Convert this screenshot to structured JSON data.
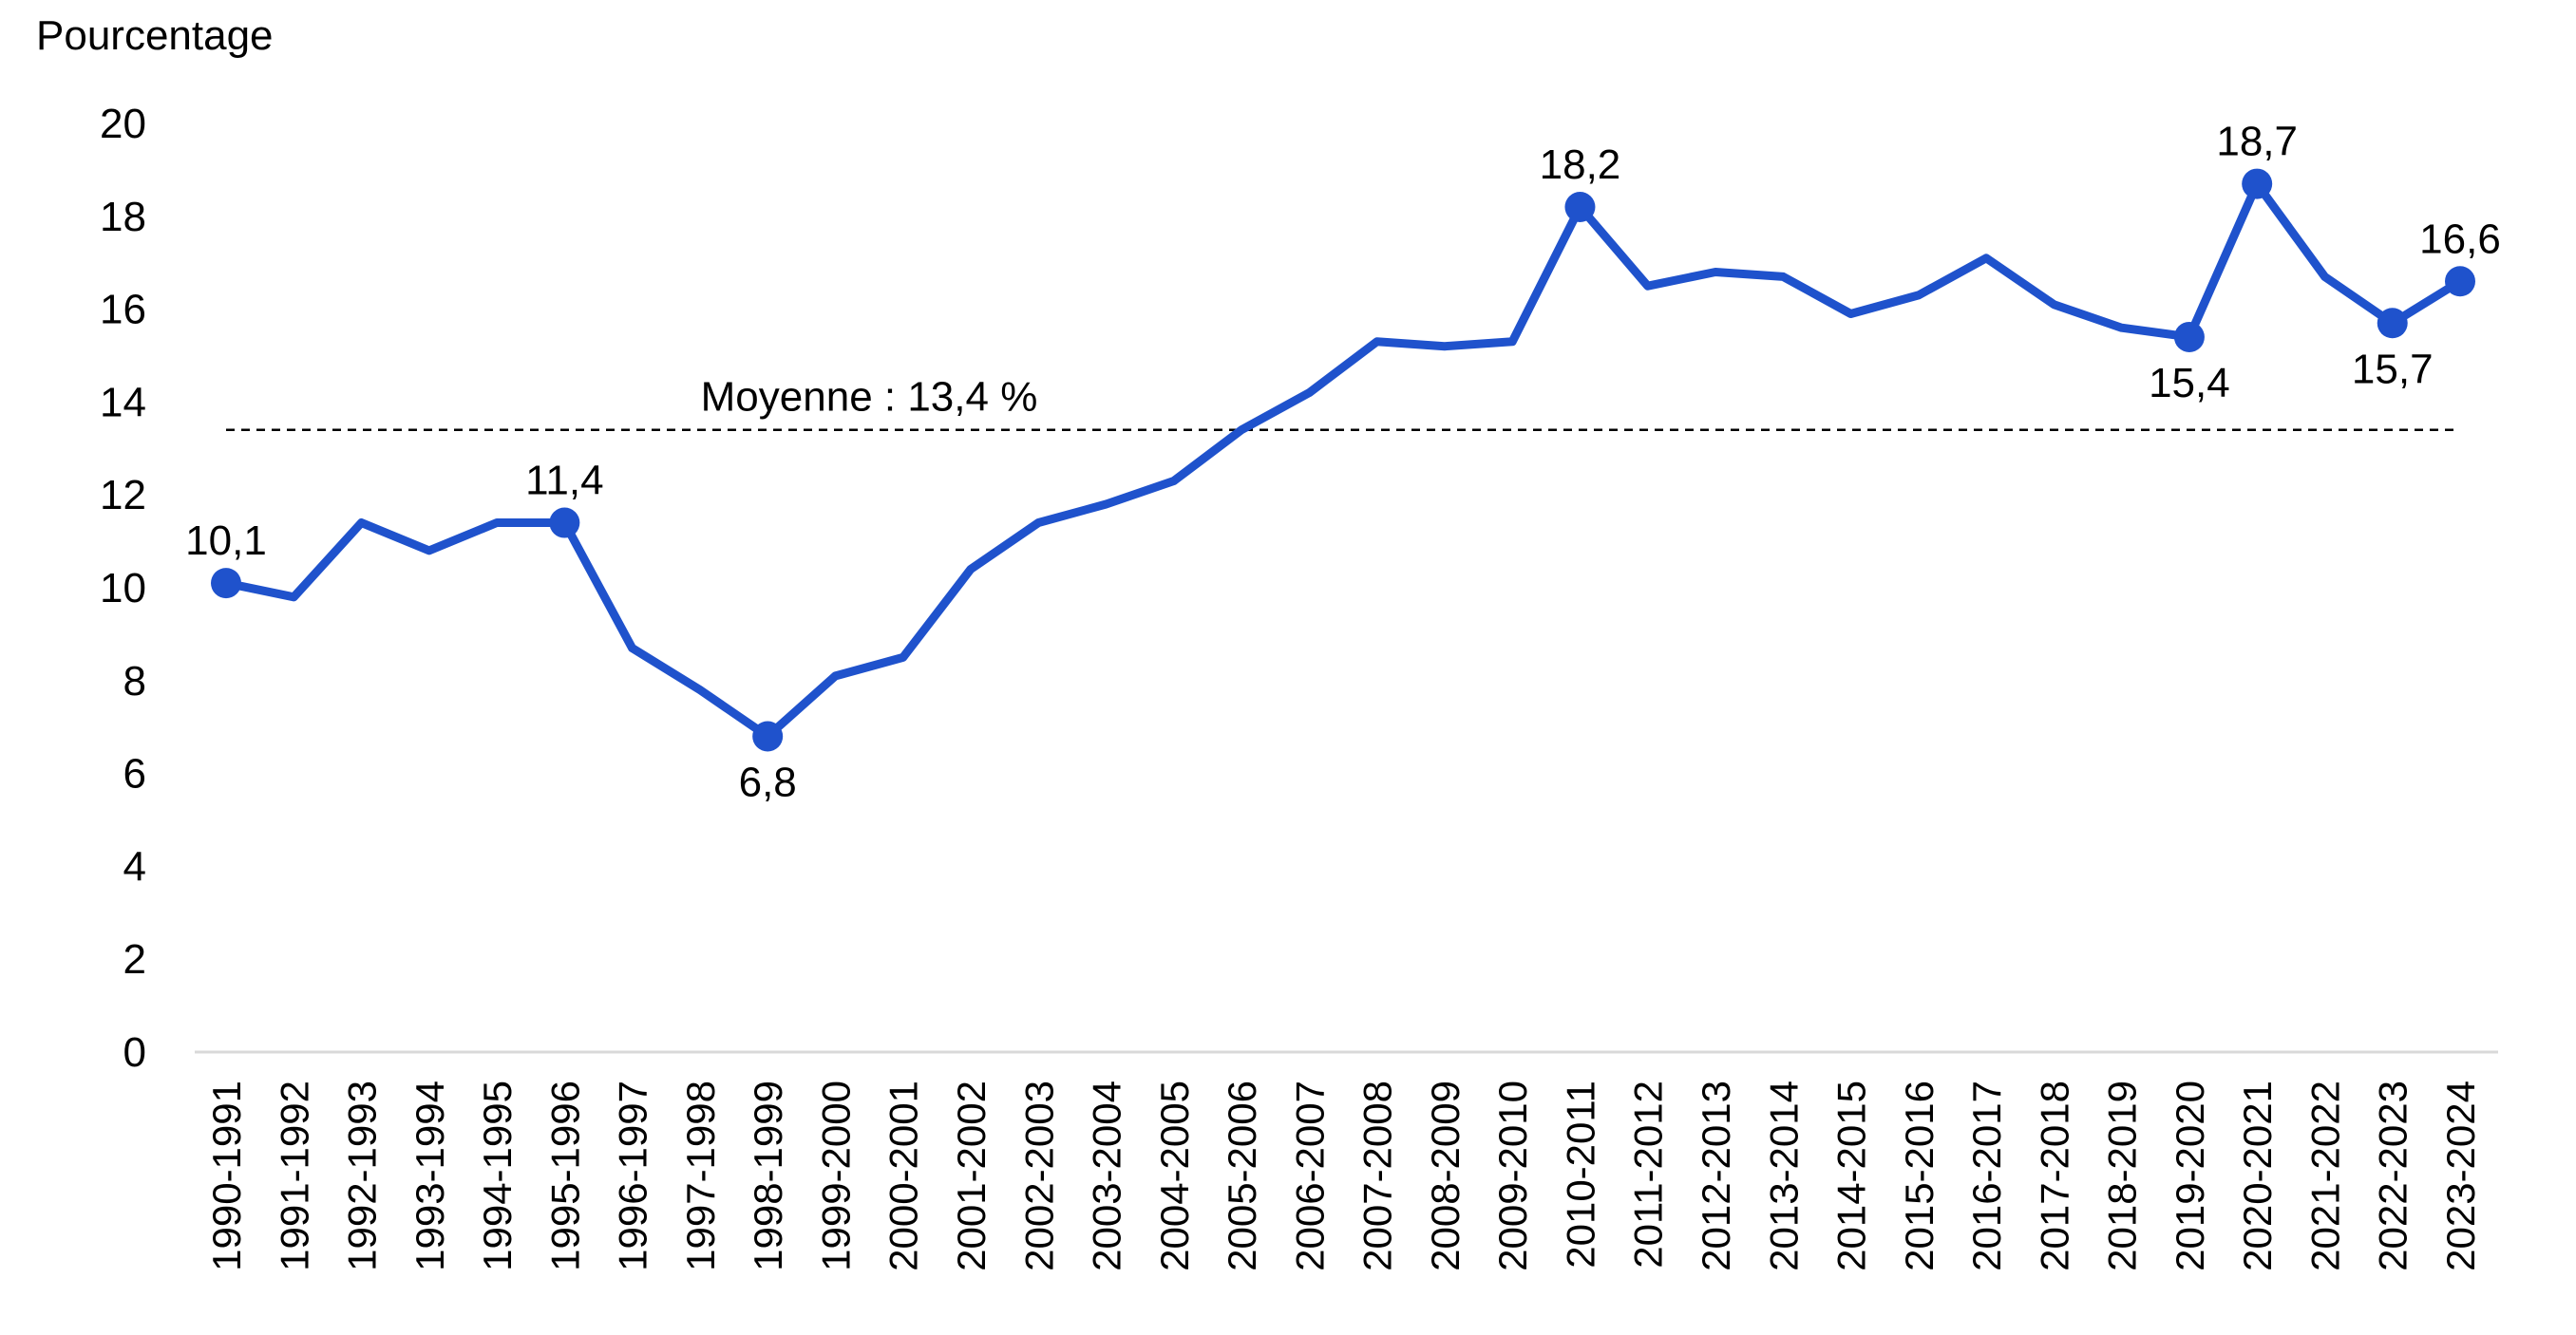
{
  "chart_data": {
    "type": "line",
    "ylabel": "Pourcentage",
    "ylim": [
      0,
      20
    ],
    "yticks": [
      0,
      2,
      4,
      6,
      8,
      10,
      12,
      14,
      16,
      18,
      20
    ],
    "categories": [
      "1990-1991",
      "1991-1992",
      "1992-1993",
      "1993-1994",
      "1994-1995",
      "1995-1996",
      "1996-1997",
      "1997-1998",
      "1998-1999",
      "1999-2000",
      "2000-2001",
      "2001-2002",
      "2002-2003",
      "2003-2004",
      "2004-2005",
      "2005-2006",
      "2006-2007",
      "2007-2008",
      "2008-2009",
      "2009-2010",
      "2010-2011",
      "2011-2012",
      "2012-2013",
      "2013-2014",
      "2014-2015",
      "2015-2016",
      "2016-2017",
      "2017-2018",
      "2018-2019",
      "2019-2020",
      "2020-2021",
      "2021-2022",
      "2022-2023",
      "2023-2024"
    ],
    "series": [
      {
        "values": [
          10.1,
          9.8,
          11.4,
          10.8,
          11.4,
          11.4,
          8.7,
          7.8,
          6.8,
          8.1,
          8.5,
          10.4,
          11.4,
          11.8,
          12.3,
          13.4,
          14.2,
          15.3,
          15.2,
          15.3,
          18.2,
          16.5,
          16.8,
          16.7,
          15.9,
          16.3,
          17.1,
          16.1,
          15.6,
          15.4,
          18.7,
          16.7,
          15.7,
          16.6
        ],
        "color": "#1f52cc"
      }
    ],
    "markers": [
      {
        "index": 0,
        "label": "10,1",
        "pos": "above"
      },
      {
        "index": 5,
        "label": "11,4",
        "pos": "above"
      },
      {
        "index": 8,
        "label": "6,8",
        "pos": "below"
      },
      {
        "index": 20,
        "label": "18,2",
        "pos": "above"
      },
      {
        "index": 29,
        "label": "15,4",
        "pos": "below"
      },
      {
        "index": 30,
        "label": "18,7",
        "pos": "above"
      },
      {
        "index": 32,
        "label": "15,7",
        "pos": "below"
      },
      {
        "index": 33,
        "label": "16,6",
        "pos": "above"
      }
    ],
    "reference_line": {
      "value": 13.4,
      "label": "Moyenne : 13,4 %",
      "style": "dashed"
    },
    "grid": false,
    "legend": "none"
  }
}
